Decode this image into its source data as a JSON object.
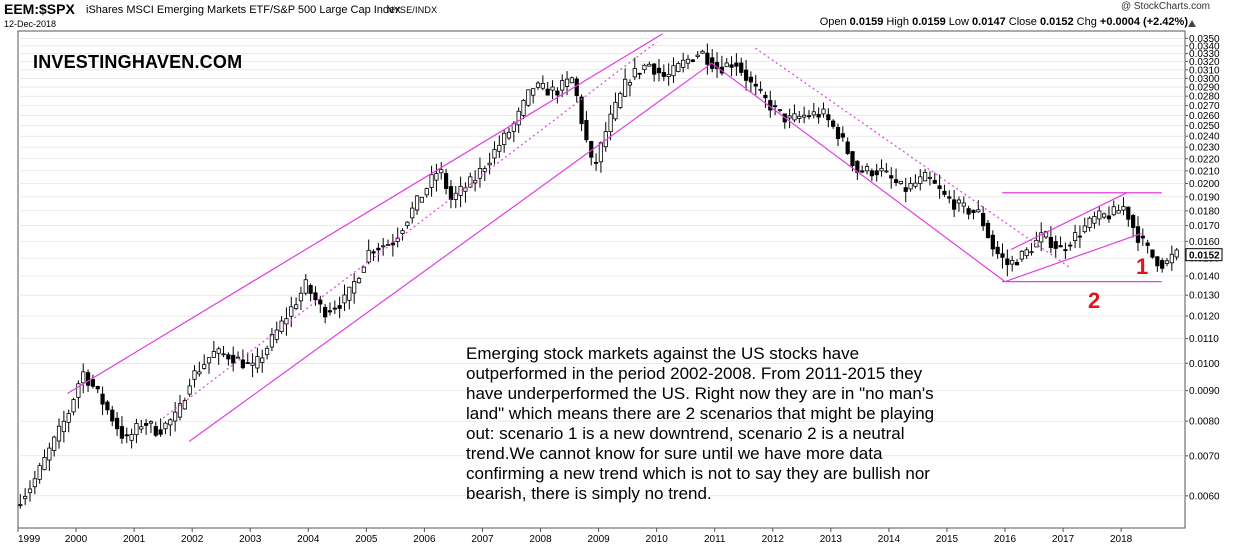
{
  "header": {
    "symbol": "EEM:$SPX",
    "name": "iShares MSCI Emerging Markets ETF/S&P 500 Large Cap Index",
    "exchange": "NYSE/INDX",
    "date": "12-Dec-2018",
    "copyright": "@ StockCharts.com",
    "ohlc": {
      "open_label": "Open",
      "open": "0.0159",
      "high_label": "High",
      "high": "0.0159",
      "low_label": "Low",
      "low": "0.0147",
      "close_label": "Close",
      "close": "0.0152",
      "chg_label": "Chg",
      "chg": "+0.0004 (+2.42%)"
    }
  },
  "watermark": "INVESTINGHAVEN.COM",
  "annotation": "Emerging stock markets against the US stocks have outperformed in the period 2002-2008. From 2011-2015 they have underperformed the US. Right now they are in \"no man's land\" which means there are 2 scenarios that might be playing out: scenario 1 is a new downtrend, scenario 2 is a neutral trend.We cannot know for sure until we have more data confirming a new trend which is not to say they are bullish nor bearish, there is simply no trend.",
  "scenario_labels": [
    "1",
    "2"
  ],
  "colors": {
    "channel": "#e040e0",
    "candle": "#000000",
    "scenario": "#e0151c",
    "grid": "#dddddd",
    "last_price_box": "#000000"
  },
  "chart_data": {
    "type": "candlestick",
    "scale": "log",
    "ylim": [
      0.0053,
      0.036
    ],
    "x_ticks": [
      "1999",
      "2000",
      "2001",
      "2002",
      "2003",
      "2004",
      "2005",
      "2006",
      "2007",
      "2008",
      "2009",
      "2010",
      "2011",
      "2012",
      "2013",
      "2014",
      "2015",
      "2016",
      "2017",
      "2018"
    ],
    "y_ticks": [
      "0.0060",
      "0.0070",
      "0.0080",
      "0.0090",
      "0.0100",
      "0.0110",
      "0.0120",
      "0.0130",
      "0.0140",
      "0.0150",
      "0.0160",
      "0.0170",
      "0.0180",
      "0.0190",
      "0.0200",
      "0.0210",
      "0.0220",
      "0.0230",
      "0.0240",
      "0.0250",
      "0.0260",
      "0.0270",
      "0.0280",
      "0.0290",
      "0.0300",
      "0.0310",
      "0.0320",
      "0.0330",
      "0.0340",
      "0.0350"
    ],
    "last_price": "0.0152",
    "anchors": [
      {
        "t": 1999.0,
        "v": 0.0058
      },
      {
        "t": 1999.3,
        "v": 0.0063
      },
      {
        "t": 1999.6,
        "v": 0.0072
      },
      {
        "t": 1999.9,
        "v": 0.0082
      },
      {
        "t": 2000.15,
        "v": 0.0097
      },
      {
        "t": 2000.35,
        "v": 0.0091
      },
      {
        "t": 2000.6,
        "v": 0.0083
      },
      {
        "t": 2000.9,
        "v": 0.0074
      },
      {
        "t": 2001.2,
        "v": 0.008
      },
      {
        "t": 2001.45,
        "v": 0.0077
      },
      {
        "t": 2001.8,
        "v": 0.0082
      },
      {
        "t": 2002.0,
        "v": 0.0094
      },
      {
        "t": 2002.4,
        "v": 0.0104
      },
      {
        "t": 2002.7,
        "v": 0.0103
      },
      {
        "t": 2003.1,
        "v": 0.0098
      },
      {
        "t": 2003.5,
        "v": 0.0113
      },
      {
        "t": 2004.0,
        "v": 0.0135
      },
      {
        "t": 2004.3,
        "v": 0.0122
      },
      {
        "t": 2004.7,
        "v": 0.0128
      },
      {
        "t": 2005.1,
        "v": 0.0155
      },
      {
        "t": 2005.5,
        "v": 0.016
      },
      {
        "t": 2005.9,
        "v": 0.0185
      },
      {
        "t": 2006.3,
        "v": 0.0212
      },
      {
        "t": 2006.5,
        "v": 0.0188
      },
      {
        "t": 2006.9,
        "v": 0.0203
      },
      {
        "t": 2007.3,
        "v": 0.023
      },
      {
        "t": 2007.6,
        "v": 0.0252
      },
      {
        "t": 2007.9,
        "v": 0.029
      },
      {
        "t": 2008.3,
        "v": 0.0285
      },
      {
        "t": 2008.6,
        "v": 0.03
      },
      {
        "t": 2008.75,
        "v": 0.0255
      },
      {
        "t": 2008.95,
        "v": 0.021
      },
      {
        "t": 2009.2,
        "v": 0.025
      },
      {
        "t": 2009.55,
        "v": 0.03
      },
      {
        "t": 2009.9,
        "v": 0.0318
      },
      {
        "t": 2010.2,
        "v": 0.03
      },
      {
        "t": 2010.5,
        "v": 0.0318
      },
      {
        "t": 2010.8,
        "v": 0.0333
      },
      {
        "t": 2011.1,
        "v": 0.0312
      },
      {
        "t": 2011.4,
        "v": 0.032
      },
      {
        "t": 2011.7,
        "v": 0.029
      },
      {
        "t": 2012.0,
        "v": 0.027
      },
      {
        "t": 2012.3,
        "v": 0.0255
      },
      {
        "t": 2012.6,
        "v": 0.026
      },
      {
        "t": 2012.9,
        "v": 0.0262
      },
      {
        "t": 2013.2,
        "v": 0.024
      },
      {
        "t": 2013.5,
        "v": 0.021
      },
      {
        "t": 2013.9,
        "v": 0.021
      },
      {
        "t": 2014.3,
        "v": 0.0195
      },
      {
        "t": 2014.7,
        "v": 0.0205
      },
      {
        "t": 2015.0,
        "v": 0.019
      },
      {
        "t": 2015.3,
        "v": 0.0182
      },
      {
        "t": 2015.6,
        "v": 0.0178
      },
      {
        "t": 2015.85,
        "v": 0.0155
      },
      {
        "t": 2016.1,
        "v": 0.0146
      },
      {
        "t": 2016.4,
        "v": 0.0153
      },
      {
        "t": 2016.7,
        "v": 0.0164
      },
      {
        "t": 2017.0,
        "v": 0.0155
      },
      {
        "t": 2017.3,
        "v": 0.0165
      },
      {
        "t": 2017.6,
        "v": 0.0175
      },
      {
        "t": 2017.9,
        "v": 0.0178
      },
      {
        "t": 2018.1,
        "v": 0.0183
      },
      {
        "t": 2018.3,
        "v": 0.0165
      },
      {
        "t": 2018.6,
        "v": 0.015
      },
      {
        "t": 2018.8,
        "v": 0.0146
      },
      {
        "t": 2018.95,
        "v": 0.0152
      }
    ],
    "trendlines": [
      {
        "from": {
          "t": 1999.85,
          "v": 0.0089
        },
        "to": {
          "t": 2010.1,
          "v": 0.0356
        },
        "style": "solid"
      },
      {
        "from": {
          "t": 2001.95,
          "v": 0.0074
        },
        "to": {
          "t": 2010.95,
          "v": 0.0318
        },
        "style": "solid"
      },
      {
        "from": {
          "t": 2001.5,
          "v": 0.0081
        },
        "to": {
          "t": 2010.0,
          "v": 0.0345
        },
        "style": "dotted"
      },
      {
        "from": {
          "t": 2010.95,
          "v": 0.0318
        },
        "to": {
          "t": 2016.0,
          "v": 0.0137
        },
        "style": "solid"
      },
      {
        "from": {
          "t": 2011.7,
          "v": 0.0337
        },
        "to": {
          "t": 2017.1,
          "v": 0.0145
        },
        "style": "dotted"
      },
      {
        "from": {
          "t": 2015.95,
          "v": 0.0137
        },
        "to": {
          "t": 2018.7,
          "v": 0.0137
        },
        "style": "solid"
      },
      {
        "from": {
          "t": 2015.95,
          "v": 0.0193
        },
        "to": {
          "t": 2018.7,
          "v": 0.0193
        },
        "style": "solid"
      },
      {
        "from": {
          "t": 2016.1,
          "v": 0.0155
        },
        "to": {
          "t": 2018.1,
          "v": 0.0193
        },
        "style": "solid"
      },
      {
        "from": {
          "t": 2016.0,
          "v": 0.0137
        },
        "to": {
          "t": 2018.35,
          "v": 0.0165
        },
        "style": "solid"
      }
    ]
  }
}
